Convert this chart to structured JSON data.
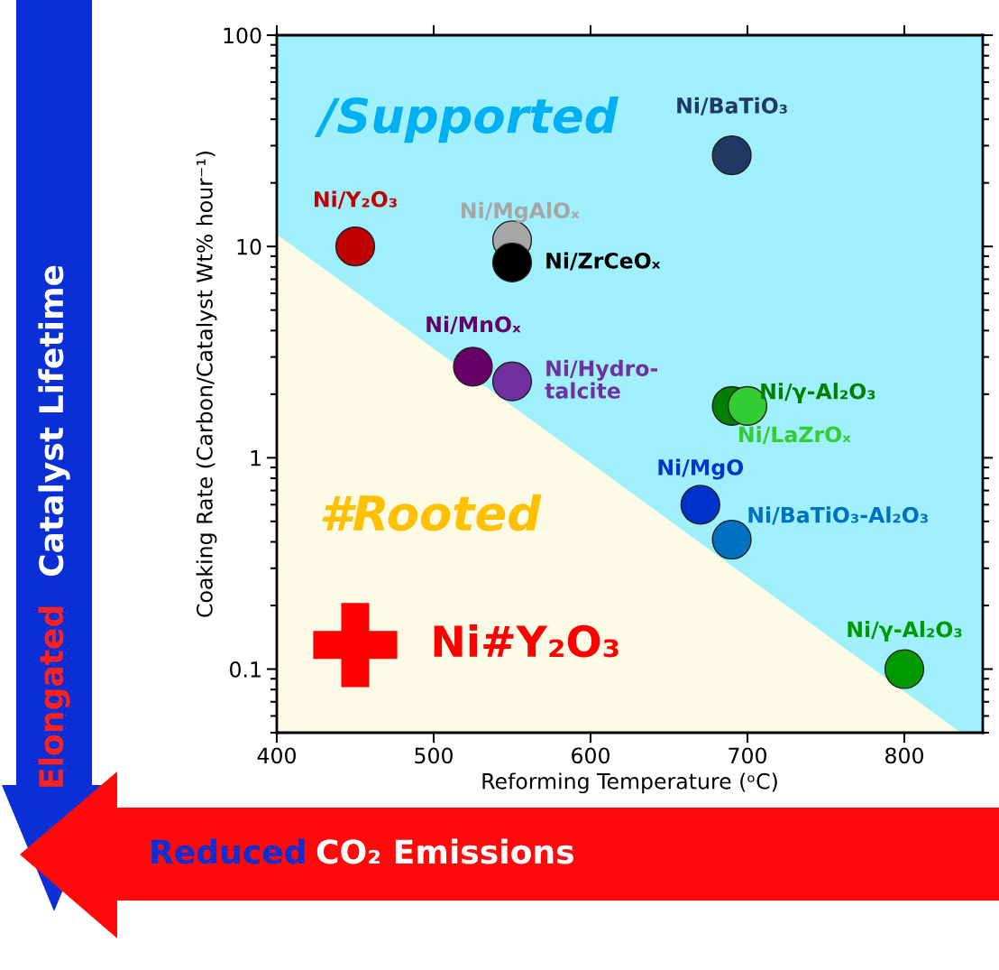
{
  "chart_data": {
    "type": "scatter",
    "xlabel": "Reforming Temperature (ᵒC)",
    "ylabel": "Coaking Rate (Carbon/Catalyst Wt% hour⁻¹)",
    "xlim": [
      400,
      850
    ],
    "xticks": [
      400,
      500,
      600,
      700,
      800
    ],
    "ylim": [
      0.05,
      100
    ],
    "yticks": [
      0.1,
      1,
      10,
      100
    ],
    "log": "y",
    "series": [
      {
        "type": "area",
        "color": "#fdfbe6",
        "x": [
          400,
          836
        ],
        "values": [
          11.4,
          0.05
        ]
      },
      {
        "name": "Ni/Y₂O₃",
        "color": "#c00000",
        "marker": "circle",
        "x": [
          450
        ],
        "values": [
          10
        ]
      },
      {
        "name": "Ni/MgAlOₓ",
        "color": "#a6a6a6",
        "marker": "circle",
        "x": [
          550
        ],
        "values": [
          10.7
        ]
      },
      {
        "name": "Ni/ZrCeOₓ",
        "color": "#000000",
        "marker": "circle",
        "x": [
          550
        ],
        "values": [
          8.4
        ]
      },
      {
        "name": "Ni/BaTiO₃",
        "color": "#1f3864",
        "marker": "circle",
        "x": [
          690
        ],
        "values": [
          27
        ]
      },
      {
        "name": "Ni/MnOₓ",
        "color": "#660066",
        "marker": "circle",
        "x": [
          525
        ],
        "values": [
          2.7
        ]
      },
      {
        "name": "Ni/Hydro-\ntalcite",
        "color": "#7030a0",
        "marker": "circle",
        "x": [
          550
        ],
        "values": [
          2.3
        ]
      },
      {
        "name": "Ni/γ-Al₂O₃",
        "color": "#008000",
        "marker": "circle",
        "x": [
          690
        ],
        "values": [
          1.76
        ]
      },
      {
        "name": "Ni/LaZrOₓ",
        "color": "#33cc33",
        "marker": "circle",
        "x": [
          700
        ],
        "values": [
          1.76
        ]
      },
      {
        "name": "Ni/MgO",
        "color": "#0033cc",
        "marker": "circle",
        "x": [
          670
        ],
        "values": [
          0.6
        ]
      },
      {
        "name": "Ni/BaTiO₃-Al₂O₃",
        "color": "#0070c0",
        "marker": "circle",
        "x": [
          690
        ],
        "values": [
          0.41
        ]
      },
      {
        "name": "Ni/γ-Al₂O₃",
        "color": "#009900",
        "marker": "circle",
        "x": [
          800
        ],
        "values": [
          0.1
        ]
      },
      {
        "name": "Ni#Y₂O₃",
        "color": "#ff0000",
        "marker": "cross",
        "x": [
          450
        ],
        "values": [
          0.13
        ]
      }
    ],
    "annotations": [
      "/Supported",
      "#Rooted",
      "Elongated",
      "Catalyst Lifetime",
      "Reduced",
      "CO₂ Emissions"
    ]
  }
}
